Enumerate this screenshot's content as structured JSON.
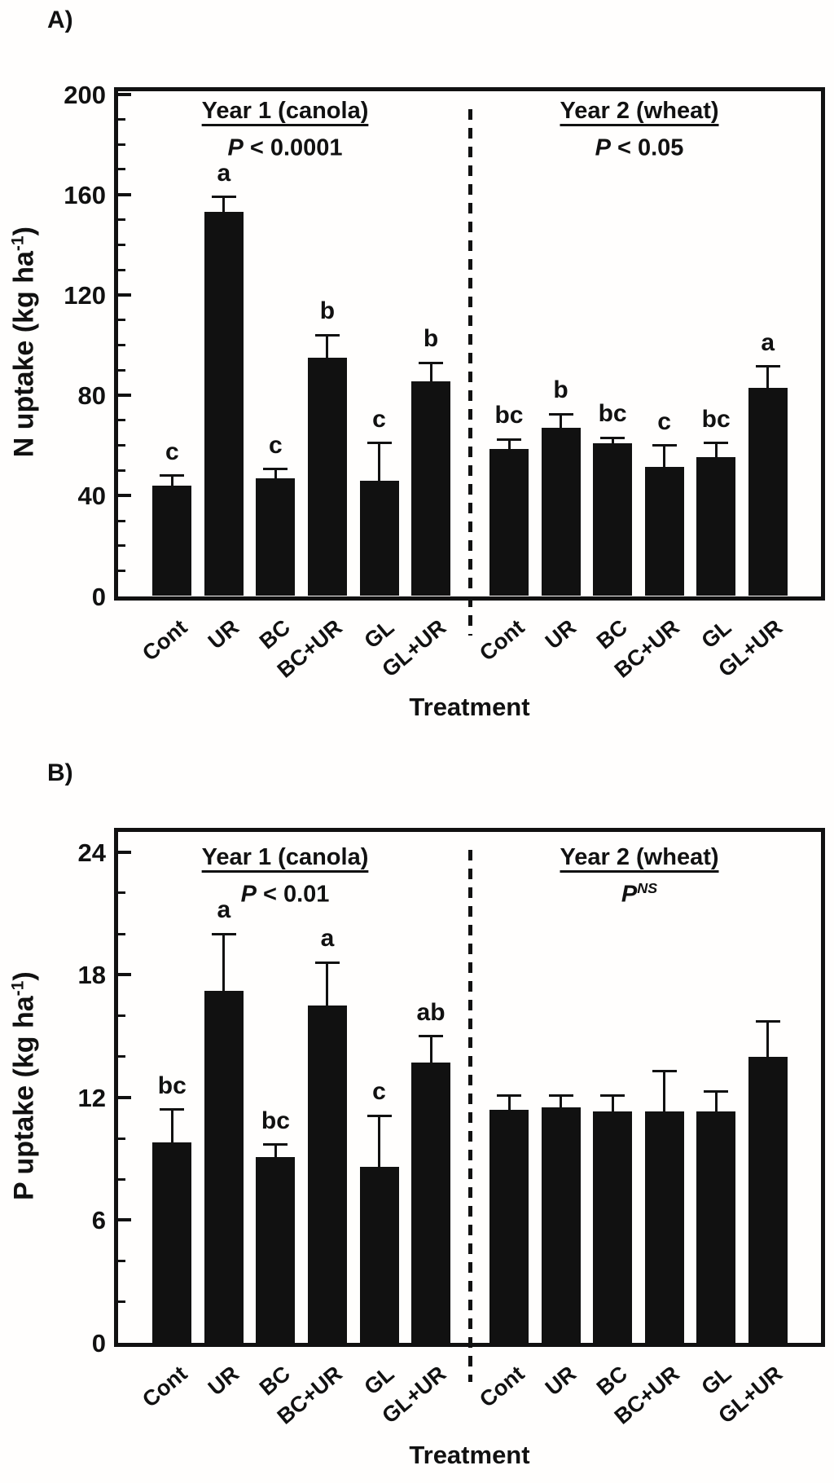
{
  "figure": {
    "panel_a_label": "A)",
    "panel_b_label": "B)"
  },
  "chart_data": [
    {
      "type": "bar",
      "panel": "A",
      "title": "",
      "ylabel": {
        "text": "N uptake (kg ha",
        "sup": "-1",
        "end": ")"
      },
      "xlabel": "Treatment",
      "ylim": [
        0,
        200
      ],
      "yticks": [
        0,
        40,
        80,
        120,
        160,
        200
      ],
      "minor_tick_step": 10,
      "bar_color": "#111111",
      "grid": "off",
      "categories": [
        "Cont",
        "UR",
        "BC",
        "BC+UR",
        "GL",
        "GL+UR"
      ],
      "groups": [
        {
          "label": "Year 1 (canola)",
          "p_value": {
            "base": "P",
            "rest": " < 0.0001",
            "sup": ""
          },
          "values": [
            44,
            153,
            47,
            95,
            46,
            85.5
          ],
          "errors_plus": [
            4,
            6,
            3.5,
            9,
            15,
            7.5
          ],
          "letters": [
            "c",
            "a",
            "c",
            "b",
            "c",
            "b"
          ]
        },
        {
          "label": "Year 2 (wheat)",
          "p_value": {
            "base": "P",
            "rest": " < 0.05",
            "sup": ""
          },
          "values": [
            58.5,
            67,
            61,
            51.5,
            55.5,
            83
          ],
          "errors_plus": [
            4,
            5.5,
            2,
            8.5,
            5.5,
            8.5
          ],
          "letters": [
            "bc",
            "b",
            "bc",
            "c",
            "bc",
            "a"
          ]
        }
      ],
      "divider": "dashed-vertical"
    },
    {
      "type": "bar",
      "panel": "B",
      "title": "",
      "ylabel": {
        "text": "P uptake (kg ha",
        "sup": "-1",
        "end": ")"
      },
      "xlabel": "Treatment",
      "ylim": [
        0,
        24
      ],
      "yticks": [
        0,
        6,
        12,
        18,
        24
      ],
      "minor_tick_step": 2,
      "bar_color": "#111111",
      "grid": "off",
      "categories": [
        "Cont",
        "UR",
        "BC",
        "BC+UR",
        "GL",
        "GL+UR"
      ],
      "groups": [
        {
          "label": "Year 1 (canola)",
          "p_value": {
            "base": "P",
            "rest": " < 0.01",
            "sup": ""
          },
          "values": [
            9.8,
            17.2,
            9.1,
            16.5,
            8.6,
            13.7
          ],
          "errors_plus": [
            1.6,
            2.8,
            0.6,
            2.1,
            2.5,
            1.3
          ],
          "letters": [
            "bc",
            "a",
            "bc",
            "a",
            "c",
            "ab"
          ]
        },
        {
          "label": "Year 2 (wheat)",
          "p_value": {
            "base": "P",
            "rest": "",
            "sup": "NS"
          },
          "values": [
            11.4,
            11.5,
            11.3,
            11.3,
            11.3,
            14.0
          ],
          "errors_plus": [
            0.7,
            0.6,
            0.8,
            2.0,
            1.0,
            1.7
          ],
          "letters": [
            "",
            "",
            "",
            "",
            "",
            ""
          ]
        }
      ],
      "divider": "dashed-vertical"
    }
  ]
}
